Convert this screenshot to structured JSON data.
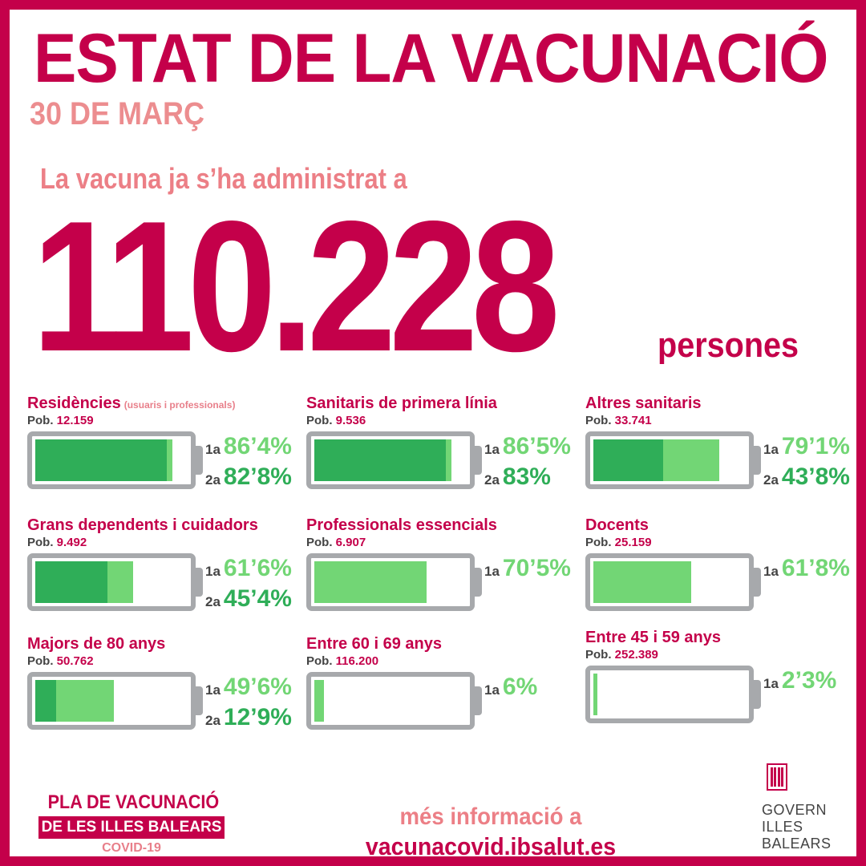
{
  "header": {
    "title": "ESTAT DE LA VACUNACIÓ",
    "date": "30 DE MARÇ"
  },
  "summary": {
    "intro": "La vacuna ja s’ha administrat a",
    "total": "110.228",
    "unit": "persones"
  },
  "colors": {
    "brand": "#c4004a",
    "first_dose": "#72d675",
    "second_dose": "#2fae58",
    "battery": "#a7a9ac"
  },
  "groups": [
    {
      "name": "Residències",
      "note": "(usuaris i professionals)",
      "pob_label": "Pob.",
      "pob": "12.159",
      "dose1_label": "1a",
      "dose1": "86’4%",
      "dose1_value": 86.4,
      "dose2_label": "2a",
      "dose2": "82’8%",
      "dose2_value": 82.8
    },
    {
      "name": "Sanitaris de primera línia",
      "pob_label": "Pob.",
      "pob": "9.536",
      "dose1_label": "1a",
      "dose1": "86’5%",
      "dose1_value": 86.5,
      "dose2_label": "2a",
      "dose2": "83%",
      "dose2_value": 83
    },
    {
      "name": "Altres sanitaris",
      "pob_label": "Pob.",
      "pob": "33.741",
      "dose1_label": "1a",
      "dose1": "79’1%",
      "dose1_value": 79.1,
      "dose2_label": "2a",
      "dose2": "43’8%",
      "dose2_value": 43.8
    },
    {
      "name": "Grans dependents i cuidadors",
      "pob_label": "Pob.",
      "pob": "9.492",
      "dose1_label": "1a",
      "dose1": "61’6%",
      "dose1_value": 61.6,
      "dose2_label": "2a",
      "dose2": "45’4%",
      "dose2_value": 45.4
    },
    {
      "name": "Professionals essencials",
      "pob_label": "Pob.",
      "pob": "6.907",
      "dose1_label": "1a",
      "dose1": "70’5%",
      "dose1_value": 70.5
    },
    {
      "name": "Docents",
      "pob_label": "Pob.",
      "pob": "25.159",
      "dose1_label": "1a",
      "dose1": "61’8%",
      "dose1_value": 61.8
    },
    {
      "name": "Majors de 80 anys",
      "pob_label": "Pob.",
      "pob": "50.762",
      "dose1_label": "1a",
      "dose1": "49’6%",
      "dose1_value": 49.6,
      "dose2_label": "2a",
      "dose2": "12’9%",
      "dose2_value": 12.9
    },
    {
      "name": "Entre 60 i 69 anys",
      "pob_label": "Pob.",
      "pob": "116.200",
      "dose1_label": "1a",
      "dose1": "6%",
      "dose1_value": 6
    },
    {
      "name": "Entre 45 i 59 anys",
      "pob_label": "Pob.",
      "pob": "252.389",
      "dose1_label": "1a",
      "dose1": "2’3%",
      "dose1_value": 2.3
    }
  ],
  "footer": {
    "plan_line1": "PLA DE VACUNACIÓ",
    "plan_line2": "DE LES ILLES BALEARS",
    "plan_line3": "COVID-19",
    "more_label": "més informació a",
    "more_url": "vacunacovid.ibsalut.es",
    "gov_line1": "GOVERN",
    "gov_line2": "ILLES",
    "gov_line3": "BALEARS",
    "gov_icon": "govern-shield-icon"
  }
}
